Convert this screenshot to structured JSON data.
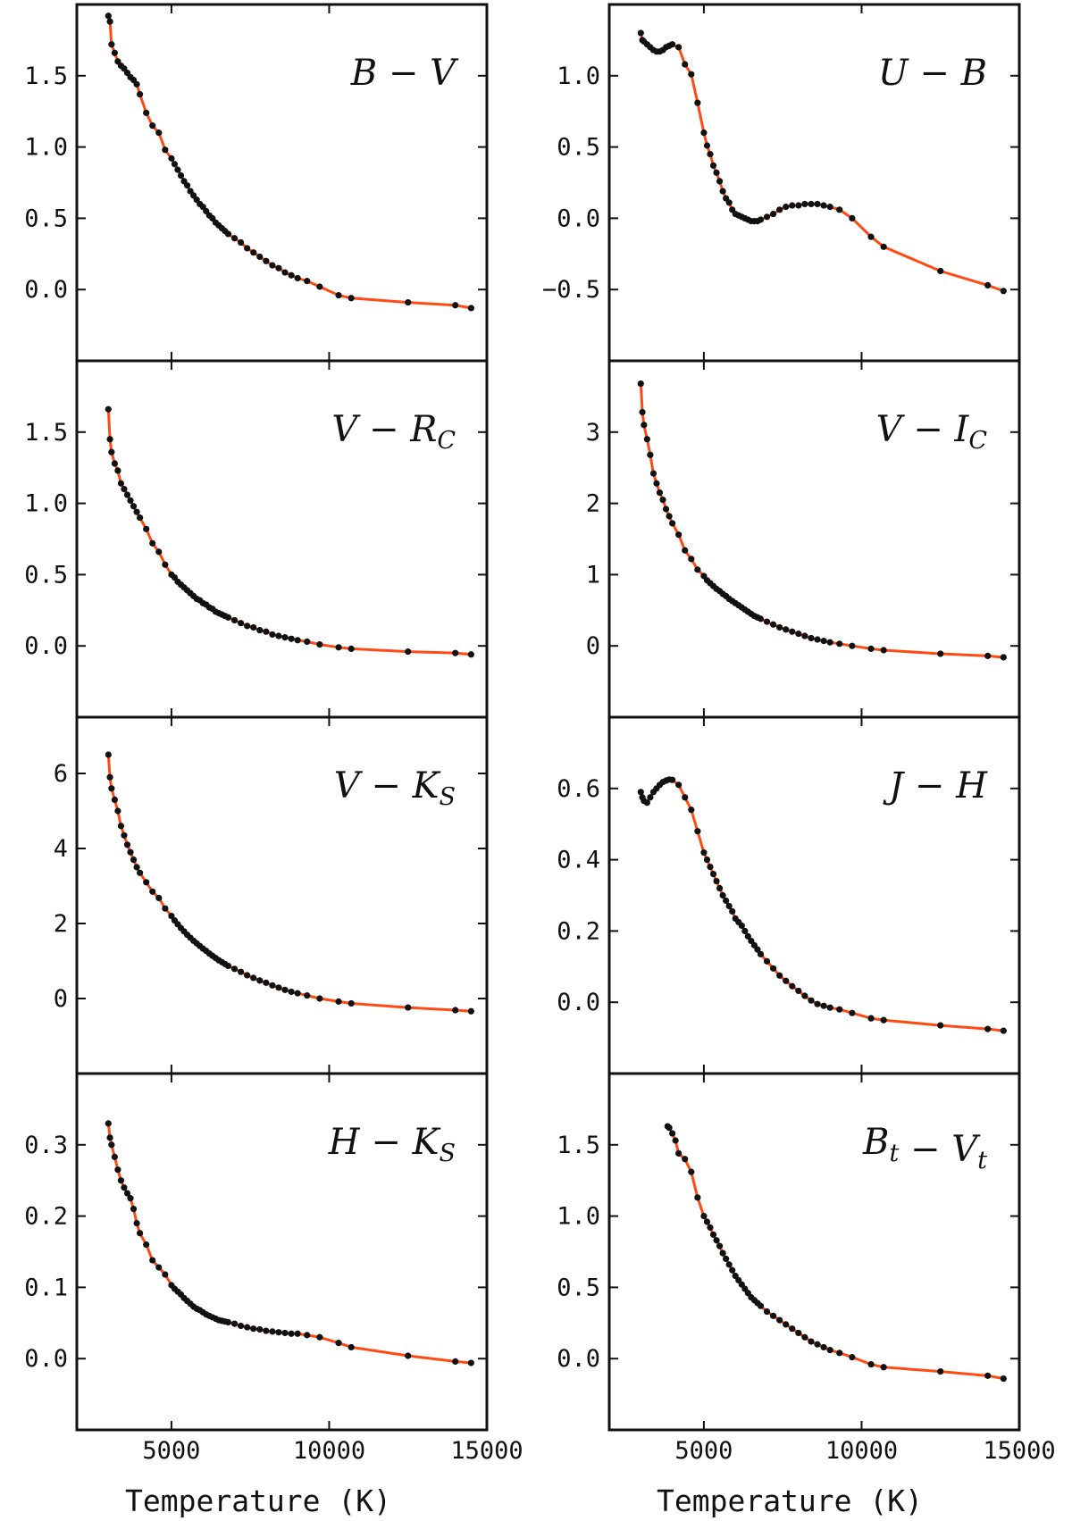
{
  "figure": {
    "xlabel": "Temperature (K)"
  },
  "chart_data": [
    {
      "type": "line",
      "label_main": "B",
      "label_main2": "V",
      "label_sub": "",
      "label_sub2": "",
      "xlim": [
        2000,
        15000
      ],
      "ylim": [
        -0.5,
        2.0
      ],
      "yticks": [
        0.0,
        0.5,
        1.0,
        1.5
      ],
      "ytick_labels": [
        "0.0",
        "0.5",
        "1.0",
        "1.5"
      ],
      "xticks": [
        5000,
        10000,
        15000
      ],
      "xtick_labels": [],
      "x": [
        3000,
        3050,
        3100,
        3200,
        3300,
        3400,
        3500,
        3600,
        3700,
        3800,
        3900,
        4000,
        4200,
        4400,
        4600,
        4800,
        5000,
        5100,
        5200,
        5300,
        5400,
        5500,
        5600,
        5700,
        5800,
        5900,
        6000,
        6100,
        6200,
        6300,
        6400,
        6500,
        6600,
        6700,
        6800,
        7000,
        7200,
        7400,
        7600,
        7800,
        8000,
        8200,
        8400,
        8600,
        8800,
        9000,
        9300,
        9700,
        10300,
        10700,
        12500,
        14000,
        14500
      ],
      "y": [
        1.92,
        1.88,
        1.72,
        1.66,
        1.6,
        1.57,
        1.55,
        1.52,
        1.49,
        1.47,
        1.44,
        1.37,
        1.24,
        1.15,
        1.1,
        0.98,
        0.92,
        0.88,
        0.84,
        0.8,
        0.76,
        0.73,
        0.69,
        0.66,
        0.63,
        0.6,
        0.58,
        0.55,
        0.52,
        0.5,
        0.47,
        0.45,
        0.43,
        0.41,
        0.39,
        0.36,
        0.33,
        0.29,
        0.26,
        0.23,
        0.2,
        0.17,
        0.15,
        0.12,
        0.1,
        0.08,
        0.06,
        0.02,
        -0.04,
        -0.06,
        -0.09,
        -0.11,
        -0.13
      ]
    },
    {
      "type": "line",
      "label_main": "U",
      "label_main2": "B",
      "label_sub": "",
      "label_sub2": "",
      "xlim": [
        2000,
        15000
      ],
      "ylim": [
        -1.0,
        1.5
      ],
      "yticks": [
        -0.5,
        0.0,
        0.5,
        1.0
      ],
      "ytick_labels": [
        "−0.5",
        "0.0",
        "0.5",
        "1.0"
      ],
      "xticks": [
        5000,
        10000,
        15000
      ],
      "xtick_labels": [],
      "x": [
        3000,
        3050,
        3100,
        3200,
        3300,
        3400,
        3500,
        3600,
        3700,
        3800,
        3900,
        4000,
        4200,
        4400,
        4600,
        4800,
        5000,
        5100,
        5200,
        5300,
        5400,
        5500,
        5600,
        5700,
        5800,
        5900,
        6000,
        6100,
        6200,
        6300,
        6400,
        6500,
        6600,
        6700,
        6800,
        7000,
        7200,
        7400,
        7600,
        7800,
        8000,
        8200,
        8400,
        8600,
        8800,
        9000,
        9300,
        9700,
        10300,
        10700,
        12500,
        14000,
        14500
      ],
      "y": [
        1.3,
        1.25,
        1.24,
        1.22,
        1.2,
        1.18,
        1.17,
        1.17,
        1.18,
        1.2,
        1.21,
        1.22,
        1.2,
        1.08,
        1.01,
        0.81,
        0.6,
        0.51,
        0.45,
        0.37,
        0.32,
        0.26,
        0.19,
        0.14,
        0.11,
        0.06,
        0.03,
        0.02,
        0.01,
        0.0,
        -0.01,
        -0.02,
        -0.02,
        -0.02,
        -0.01,
        0.01,
        0.03,
        0.06,
        0.08,
        0.09,
        0.09,
        0.1,
        0.1,
        0.1,
        0.09,
        0.08,
        0.06,
        0.0,
        -0.13,
        -0.2,
        -0.37,
        -0.47,
        -0.51
      ]
    },
    {
      "type": "line",
      "label_main": "V",
      "label_main2": "R",
      "label_sub": "",
      "label_sub2": "C",
      "xlim": [
        2000,
        15000
      ],
      "ylim": [
        -0.5,
        2.0
      ],
      "yticks": [
        0.0,
        0.5,
        1.0,
        1.5
      ],
      "ytick_labels": [
        "0.0",
        "0.5",
        "1.0",
        "1.5"
      ],
      "xticks": [
        5000,
        10000,
        15000
      ],
      "xtick_labels": [],
      "x": [
        3000,
        3050,
        3100,
        3200,
        3300,
        3400,
        3500,
        3600,
        3700,
        3800,
        3900,
        4000,
        4200,
        4400,
        4600,
        4800,
        5000,
        5100,
        5200,
        5300,
        5400,
        5500,
        5600,
        5700,
        5800,
        5900,
        6000,
        6100,
        6200,
        6300,
        6400,
        6500,
        6600,
        6700,
        6800,
        7000,
        7200,
        7400,
        7600,
        7800,
        8000,
        8200,
        8400,
        8600,
        8800,
        9000,
        9300,
        9700,
        10300,
        10700,
        12500,
        14000,
        14500
      ],
      "y": [
        1.66,
        1.45,
        1.36,
        1.28,
        1.23,
        1.14,
        1.1,
        1.06,
        1.02,
        0.98,
        0.94,
        0.9,
        0.82,
        0.72,
        0.66,
        0.57,
        0.5,
        0.48,
        0.45,
        0.43,
        0.41,
        0.39,
        0.37,
        0.35,
        0.33,
        0.32,
        0.3,
        0.29,
        0.27,
        0.26,
        0.24,
        0.23,
        0.22,
        0.21,
        0.2,
        0.18,
        0.16,
        0.14,
        0.13,
        0.11,
        0.1,
        0.08,
        0.07,
        0.06,
        0.05,
        0.04,
        0.03,
        0.01,
        -0.01,
        -0.02,
        -0.04,
        -0.05,
        -0.06
      ]
    },
    {
      "type": "line",
      "label_main": "V",
      "label_main2": "I",
      "label_sub": "",
      "label_sub2": "C",
      "xlim": [
        2000,
        15000
      ],
      "ylim": [
        -1.0,
        4.0
      ],
      "yticks": [
        0,
        1,
        2,
        3
      ],
      "ytick_labels": [
        "0",
        "1",
        "2",
        "3"
      ],
      "xticks": [
        5000,
        10000,
        15000
      ],
      "xtick_labels": [],
      "x": [
        3000,
        3050,
        3100,
        3200,
        3300,
        3400,
        3500,
        3600,
        3700,
        3800,
        3900,
        4000,
        4200,
        4400,
        4600,
        4800,
        5000,
        5100,
        5200,
        5300,
        5400,
        5500,
        5600,
        5700,
        5800,
        5900,
        6000,
        6100,
        6200,
        6300,
        6400,
        6500,
        6600,
        6700,
        6800,
        7000,
        7200,
        7400,
        7600,
        7800,
        8000,
        8200,
        8400,
        8600,
        8800,
        9000,
        9300,
        9700,
        10300,
        10700,
        12500,
        14000,
        14500
      ],
      "y": [
        3.68,
        3.28,
        3.1,
        2.9,
        2.68,
        2.42,
        2.28,
        2.15,
        2.05,
        1.92,
        1.82,
        1.72,
        1.56,
        1.34,
        1.22,
        1.07,
        0.98,
        0.92,
        0.88,
        0.84,
        0.8,
        0.77,
        0.73,
        0.7,
        0.66,
        0.63,
        0.6,
        0.57,
        0.54,
        0.51,
        0.48,
        0.45,
        0.42,
        0.4,
        0.38,
        0.34,
        0.3,
        0.26,
        0.23,
        0.2,
        0.17,
        0.14,
        0.11,
        0.09,
        0.07,
        0.05,
        0.03,
        0.0,
        -0.04,
        -0.06,
        -0.11,
        -0.14,
        -0.16
      ]
    },
    {
      "type": "line",
      "label_main": "V",
      "label_main2": "K",
      "label_sub": "",
      "label_sub2": "S",
      "xlim": [
        2000,
        15000
      ],
      "ylim": [
        -2.0,
        7.5
      ],
      "yticks": [
        0,
        2,
        4,
        6
      ],
      "ytick_labels": [
        "0",
        "2",
        "4",
        "6"
      ],
      "xticks": [
        5000,
        10000,
        15000
      ],
      "xtick_labels": [],
      "x": [
        3000,
        3050,
        3100,
        3200,
        3300,
        3400,
        3500,
        3600,
        3700,
        3800,
        3900,
        4000,
        4200,
        4400,
        4600,
        4800,
        5000,
        5100,
        5200,
        5300,
        5400,
        5500,
        5600,
        5700,
        5800,
        5900,
        6000,
        6100,
        6200,
        6300,
        6400,
        6500,
        6600,
        6700,
        6800,
        7000,
        7200,
        7400,
        7600,
        7800,
        8000,
        8200,
        8400,
        8600,
        8800,
        9000,
        9300,
        9700,
        10300,
        10700,
        12500,
        14000,
        14500
      ],
      "y": [
        6.5,
        5.9,
        5.6,
        5.3,
        5.0,
        4.6,
        4.35,
        4.1,
        3.9,
        3.7,
        3.5,
        3.35,
        3.1,
        2.85,
        2.68,
        2.4,
        2.2,
        2.08,
        1.98,
        1.88,
        1.79,
        1.7,
        1.62,
        1.54,
        1.47,
        1.4,
        1.33,
        1.27,
        1.2,
        1.14,
        1.08,
        1.02,
        0.97,
        0.92,
        0.87,
        0.79,
        0.71,
        0.62,
        0.55,
        0.48,
        0.42,
        0.35,
        0.29,
        0.23,
        0.18,
        0.14,
        0.08,
        0.0,
        -0.08,
        -0.13,
        -0.24,
        -0.31,
        -0.34
      ]
    },
    {
      "type": "line",
      "label_main": "J",
      "label_main2": "H",
      "label_sub": "",
      "label_sub2": "",
      "xlim": [
        2000,
        15000
      ],
      "ylim": [
        -0.2,
        0.8
      ],
      "yticks": [
        0.0,
        0.2,
        0.4,
        0.6
      ],
      "ytick_labels": [
        "0.0",
        "0.2",
        "0.4",
        "0.6"
      ],
      "xticks": [
        5000,
        10000,
        15000
      ],
      "xtick_labels": [],
      "x": [
        3000,
        3050,
        3100,
        3200,
        3300,
        3400,
        3500,
        3600,
        3700,
        3800,
        3900,
        4000,
        4200,
        4400,
        4600,
        4800,
        5000,
        5100,
        5200,
        5300,
        5400,
        5500,
        5600,
        5700,
        5800,
        5900,
        6000,
        6100,
        6200,
        6300,
        6400,
        6500,
        6600,
        6700,
        6800,
        7000,
        7200,
        7400,
        7600,
        7800,
        8000,
        8200,
        8400,
        8600,
        8800,
        9000,
        9300,
        9700,
        10300,
        10700,
        12500,
        14000,
        14500
      ],
      "y": [
        0.59,
        0.575,
        0.565,
        0.56,
        0.575,
        0.59,
        0.6,
        0.61,
        0.618,
        0.622,
        0.625,
        0.624,
        0.61,
        0.575,
        0.54,
        0.48,
        0.42,
        0.4,
        0.38,
        0.36,
        0.34,
        0.32,
        0.3,
        0.285,
        0.27,
        0.255,
        0.235,
        0.225,
        0.215,
        0.2,
        0.185,
        0.172,
        0.16,
        0.148,
        0.135,
        0.115,
        0.095,
        0.075,
        0.06,
        0.045,
        0.032,
        0.018,
        0.005,
        -0.005,
        -0.01,
        -0.015,
        -0.02,
        -0.03,
        -0.045,
        -0.05,
        -0.065,
        -0.075,
        -0.08
      ]
    },
    {
      "type": "line",
      "label_main": "H",
      "label_main2": "K",
      "label_sub": "",
      "label_sub2": "S",
      "xlim": [
        2000,
        15000
      ],
      "ylim": [
        -0.1,
        0.4
      ],
      "yticks": [
        0.0,
        0.1,
        0.2,
        0.3
      ],
      "ytick_labels": [
        "0.0",
        "0.1",
        "0.2",
        "0.3"
      ],
      "xticks": [
        5000,
        10000,
        15000
      ],
      "xtick_labels": [
        "5000",
        "10000",
        "15000"
      ],
      "x": [
        3000,
        3050,
        3100,
        3200,
        3300,
        3400,
        3500,
        3600,
        3700,
        3800,
        3900,
        4000,
        4200,
        4400,
        4600,
        4800,
        5000,
        5100,
        5200,
        5300,
        5400,
        5500,
        5600,
        5700,
        5800,
        5900,
        6000,
        6100,
        6200,
        6300,
        6400,
        6500,
        6600,
        6700,
        6800,
        7000,
        7200,
        7400,
        7600,
        7800,
        8000,
        8200,
        8400,
        8600,
        8800,
        9000,
        9300,
        9700,
        10300,
        10700,
        12500,
        14000,
        14500
      ],
      "y": [
        0.33,
        0.31,
        0.3,
        0.283,
        0.265,
        0.25,
        0.24,
        0.232,
        0.225,
        0.21,
        0.19,
        0.176,
        0.16,
        0.138,
        0.128,
        0.118,
        0.103,
        0.098,
        0.094,
        0.09,
        0.085,
        0.081,
        0.077,
        0.073,
        0.07,
        0.068,
        0.065,
        0.062,
        0.06,
        0.058,
        0.056,
        0.054,
        0.053,
        0.052,
        0.051,
        0.049,
        0.046,
        0.044,
        0.042,
        0.041,
        0.039,
        0.038,
        0.037,
        0.036,
        0.035,
        0.035,
        0.033,
        0.03,
        0.022,
        0.016,
        0.004,
        -0.004,
        -0.006
      ]
    },
    {
      "type": "line",
      "label_main": "B",
      "label_main2": "V",
      "label_sub": "t",
      "label_sub2": "t",
      "xlim": [
        2000,
        15000
      ],
      "ylim": [
        -0.5,
        2.0
      ],
      "yticks": [
        0.0,
        0.5,
        1.0,
        1.5
      ],
      "ytick_labels": [
        "0.0",
        "0.5",
        "1.0",
        "1.5"
      ],
      "xticks": [
        5000,
        10000,
        15000
      ],
      "xtick_labels": [
        "5000",
        "10000",
        "15000"
      ],
      "x": [
        3850,
        3900,
        4000,
        4100,
        4200,
        4400,
        4600,
        4800,
        5000,
        5100,
        5200,
        5300,
        5400,
        5500,
        5600,
        5700,
        5800,
        5900,
        6000,
        6100,
        6200,
        6300,
        6400,
        6500,
        6600,
        6700,
        6800,
        7000,
        7200,
        7400,
        7600,
        7800,
        8000,
        8200,
        8400,
        8600,
        8800,
        9000,
        9300,
        9700,
        10300,
        10700,
        12500,
        14000,
        14500
      ],
      "y": [
        1.63,
        1.62,
        1.58,
        1.53,
        1.44,
        1.4,
        1.31,
        1.13,
        1.0,
        0.96,
        0.92,
        0.87,
        0.83,
        0.79,
        0.74,
        0.7,
        0.66,
        0.62,
        0.58,
        0.55,
        0.52,
        0.49,
        0.46,
        0.43,
        0.41,
        0.39,
        0.37,
        0.33,
        0.3,
        0.27,
        0.24,
        0.21,
        0.18,
        0.15,
        0.12,
        0.1,
        0.08,
        0.06,
        0.04,
        0.01,
        -0.04,
        -0.06,
        -0.09,
        -0.12,
        -0.14
      ]
    }
  ]
}
